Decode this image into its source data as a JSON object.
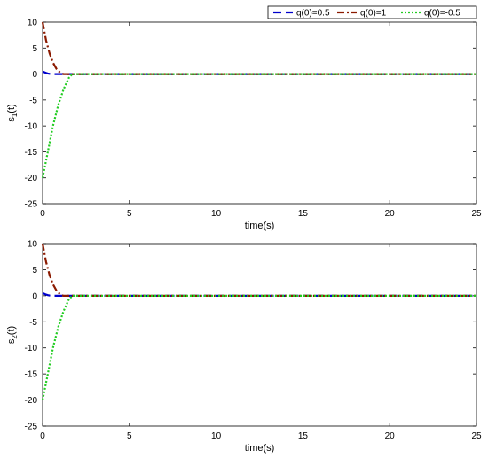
{
  "chart_data": [
    {
      "type": "line",
      "xlabel": "time(s)",
      "ylabel_base": "s",
      "ylabel_sub": "1",
      "ylabel_tail": "(t)",
      "xlim": [
        0,
        25
      ],
      "ylim": [
        -25,
        10
      ],
      "xticks": [
        "0",
        "5",
        "10",
        "15",
        "20",
        "25"
      ],
      "yticks": [
        "10",
        "5",
        "0",
        "-5",
        "-10",
        "-15",
        "-20",
        "-25"
      ],
      "grid": false,
      "legend_position": "top-right",
      "series": [
        {
          "name": "q(0)=0.5",
          "color": "#0000cc",
          "dash": "dash",
          "x": [
            0,
            0.1,
            0.2,
            0.3,
            0.4,
            0.5,
            25
          ],
          "y": [
            0.5,
            0.35,
            0.22,
            0.12,
            0.05,
            0,
            0
          ]
        },
        {
          "name": "q(0)=1",
          "color": "#8b1a00",
          "dash": "dashdot",
          "x": [
            0,
            0.2,
            0.4,
            0.6,
            0.8,
            1.0,
            1.2,
            25
          ],
          "y": [
            10,
            6.5,
            4,
            2.2,
            1,
            0.3,
            0,
            0
          ]
        },
        {
          "name": "q(0)=-0.5",
          "color": "#22cc22",
          "dash": "dot",
          "x": [
            0,
            0.3,
            0.6,
            0.9,
            1.2,
            1.5,
            1.7,
            25
          ],
          "y": [
            -20,
            -15,
            -10,
            -6,
            -3,
            -0.8,
            0,
            0
          ]
        }
      ]
    },
    {
      "type": "line",
      "xlabel": "time(s)",
      "ylabel_base": "s",
      "ylabel_sub": "2",
      "ylabel_tail": "(t)",
      "xlim": [
        0,
        25
      ],
      "ylim": [
        -25,
        10
      ],
      "xticks": [
        "0",
        "5",
        "10",
        "15",
        "20",
        "25"
      ],
      "yticks": [
        "10",
        "5",
        "0",
        "-5",
        "-10",
        "-15",
        "-20",
        "-25"
      ],
      "grid": false,
      "series": [
        {
          "name": "q(0)=0.5",
          "color": "#0000cc",
          "dash": "dash",
          "x": [
            0,
            0.1,
            0.2,
            0.3,
            0.4,
            0.5,
            25
          ],
          "y": [
            0.5,
            0.35,
            0.22,
            0.12,
            0.05,
            0,
            0
          ]
        },
        {
          "name": "q(0)=1",
          "color": "#8b1a00",
          "dash": "dashdot",
          "x": [
            0,
            0.2,
            0.4,
            0.6,
            0.8,
            1.0,
            1.2,
            25
          ],
          "y": [
            10,
            6.5,
            4,
            2.2,
            1,
            0.3,
            0,
            0
          ]
        },
        {
          "name": "q(0)=-0.5",
          "color": "#22cc22",
          "dash": "dot",
          "x": [
            0,
            0.3,
            0.6,
            0.9,
            1.2,
            1.5,
            1.7,
            25
          ],
          "y": [
            -20,
            -15,
            -10,
            -6,
            -3,
            -0.8,
            0,
            0
          ]
        }
      ]
    }
  ]
}
